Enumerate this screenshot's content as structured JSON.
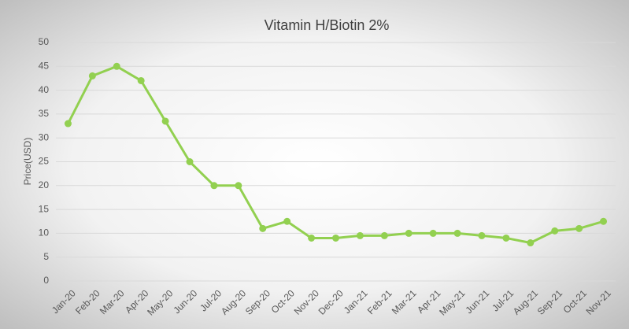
{
  "chart_data": {
    "type": "line",
    "title": "Vitamin H/Biotin 2%",
    "y_label": "Price(USD)",
    "categories": [
      "Jan-20",
      "Feb-20",
      "Mar-20",
      "Apr-20",
      "May-20",
      "Jun-20",
      "Jul-20",
      "Aug-20",
      "Sep-20",
      "Oct-20",
      "Nov-20",
      "Dec-20",
      "Jan-21",
      "Feb-21",
      "Mar-21",
      "Apr-21",
      "May-21",
      "Jun-21",
      "Jul-21",
      "Aug-21",
      "Sep-21",
      "Oct-21",
      "Nov-21"
    ],
    "values": [
      33,
      43,
      45,
      42,
      33.5,
      25,
      20,
      20,
      11,
      12.5,
      9,
      9,
      9.5,
      9.5,
      10,
      10,
      10,
      9.5,
      9,
      8,
      10.5,
      11,
      12.5
    ],
    "color": "#92d050",
    "ylim": [
      0,
      50
    ],
    "yticks": [
      0,
      5,
      10,
      15,
      20,
      25,
      30,
      35,
      40,
      45,
      50
    ],
    "grid": true
  }
}
